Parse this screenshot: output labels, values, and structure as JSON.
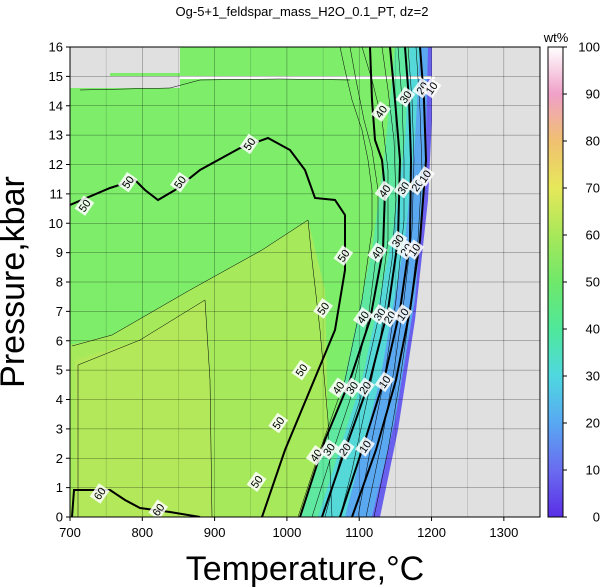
{
  "chart_data": {
    "type": "heatmap",
    "title": "Og-5+1_feldspar_mass_H2O_0.1_PT, dz=2",
    "xlabel": "Temperature,°C",
    "ylabel": "Pressure,kbar",
    "xlim": [
      700,
      1350
    ],
    "ylim": [
      0,
      16
    ],
    "x_ticks": [
      "700",
      "800",
      "900",
      "1000",
      "1100",
      "1200",
      "1300"
    ],
    "y_ticks": [
      "0",
      "1",
      "2",
      "3",
      "4",
      "5",
      "6",
      "7",
      "8",
      "9",
      "10",
      "11",
      "12",
      "13",
      "14",
      "15",
      "16"
    ],
    "grid": true,
    "colorbar": {
      "label": "wt%",
      "range": [
        0,
        100
      ],
      "ticks": [
        "0",
        "10",
        "20",
        "30",
        "40",
        "50",
        "60",
        "70",
        "80",
        "90",
        "100"
      ]
    },
    "field": {
      "grid_step_wt": 2,
      "highlighted_contours": [
        10,
        20,
        30,
        40,
        50,
        60
      ],
      "no_data_region": "above ~1125°C at 0 kbar to ~1210°C at 16 kbar"
    },
    "contour_labels": [
      {
        "text": "50",
        "x": 720,
        "y": 10.6
      },
      {
        "text": "50",
        "x": 780,
        "y": 11.4
      },
      {
        "text": "50",
        "x": 852,
        "y": 11.4
      },
      {
        "text": "50",
        "x": 948,
        "y": 12.7
      },
      {
        "text": "50",
        "x": 1078,
        "y": 8.9
      },
      {
        "text": "50",
        "x": 1050,
        "y": 7.1
      },
      {
        "text": "50",
        "x": 1020,
        "y": 5.0
      },
      {
        "text": "50",
        "x": 988,
        "y": 3.2
      },
      {
        "text": "50",
        "x": 958,
        "y": 1.2
      },
      {
        "text": "40",
        "x": 1130,
        "y": 13.8
      },
      {
        "text": "40",
        "x": 1135,
        "y": 11.1
      },
      {
        "text": "40",
        "x": 1125,
        "y": 9.0
      },
      {
        "text": "40",
        "x": 1105,
        "y": 6.8
      },
      {
        "text": "40",
        "x": 1071,
        "y": 4.4
      },
      {
        "text": "40",
        "x": 1040,
        "y": 2.1
      },
      {
        "text": "30",
        "x": 1164,
        "y": 14.3
      },
      {
        "text": "30",
        "x": 1161,
        "y": 11.2
      },
      {
        "text": "30",
        "x": 1153,
        "y": 9.4
      },
      {
        "text": "30",
        "x": 1128,
        "y": 6.9
      },
      {
        "text": "30",
        "x": 1090,
        "y": 4.4
      },
      {
        "text": "30",
        "x": 1058,
        "y": 2.3
      },
      {
        "text": "20",
        "x": 1187,
        "y": 14.6
      },
      {
        "text": "20",
        "x": 1180,
        "y": 11.3
      },
      {
        "text": "20",
        "x": 1165,
        "y": 9.1
      },
      {
        "text": "20",
        "x": 1142,
        "y": 6.8
      },
      {
        "text": "20",
        "x": 1108,
        "y": 4.4
      },
      {
        "text": "20",
        "x": 1080,
        "y": 2.3
      },
      {
        "text": "10",
        "x": 1200,
        "y": 14.6
      },
      {
        "text": "10",
        "x": 1191,
        "y": 11.6
      },
      {
        "text": "10",
        "x": 1176,
        "y": 9.1
      },
      {
        "text": "10",
        "x": 1160,
        "y": 6.9
      },
      {
        "text": "10",
        "x": 1135,
        "y": 4.6
      },
      {
        "text": "10",
        "x": 1108,
        "y": 2.4
      },
      {
        "text": "60",
        "x": 741,
        "y": 0.8
      },
      {
        "text": "60",
        "x": 822,
        "y": 0.25
      }
    ]
  }
}
